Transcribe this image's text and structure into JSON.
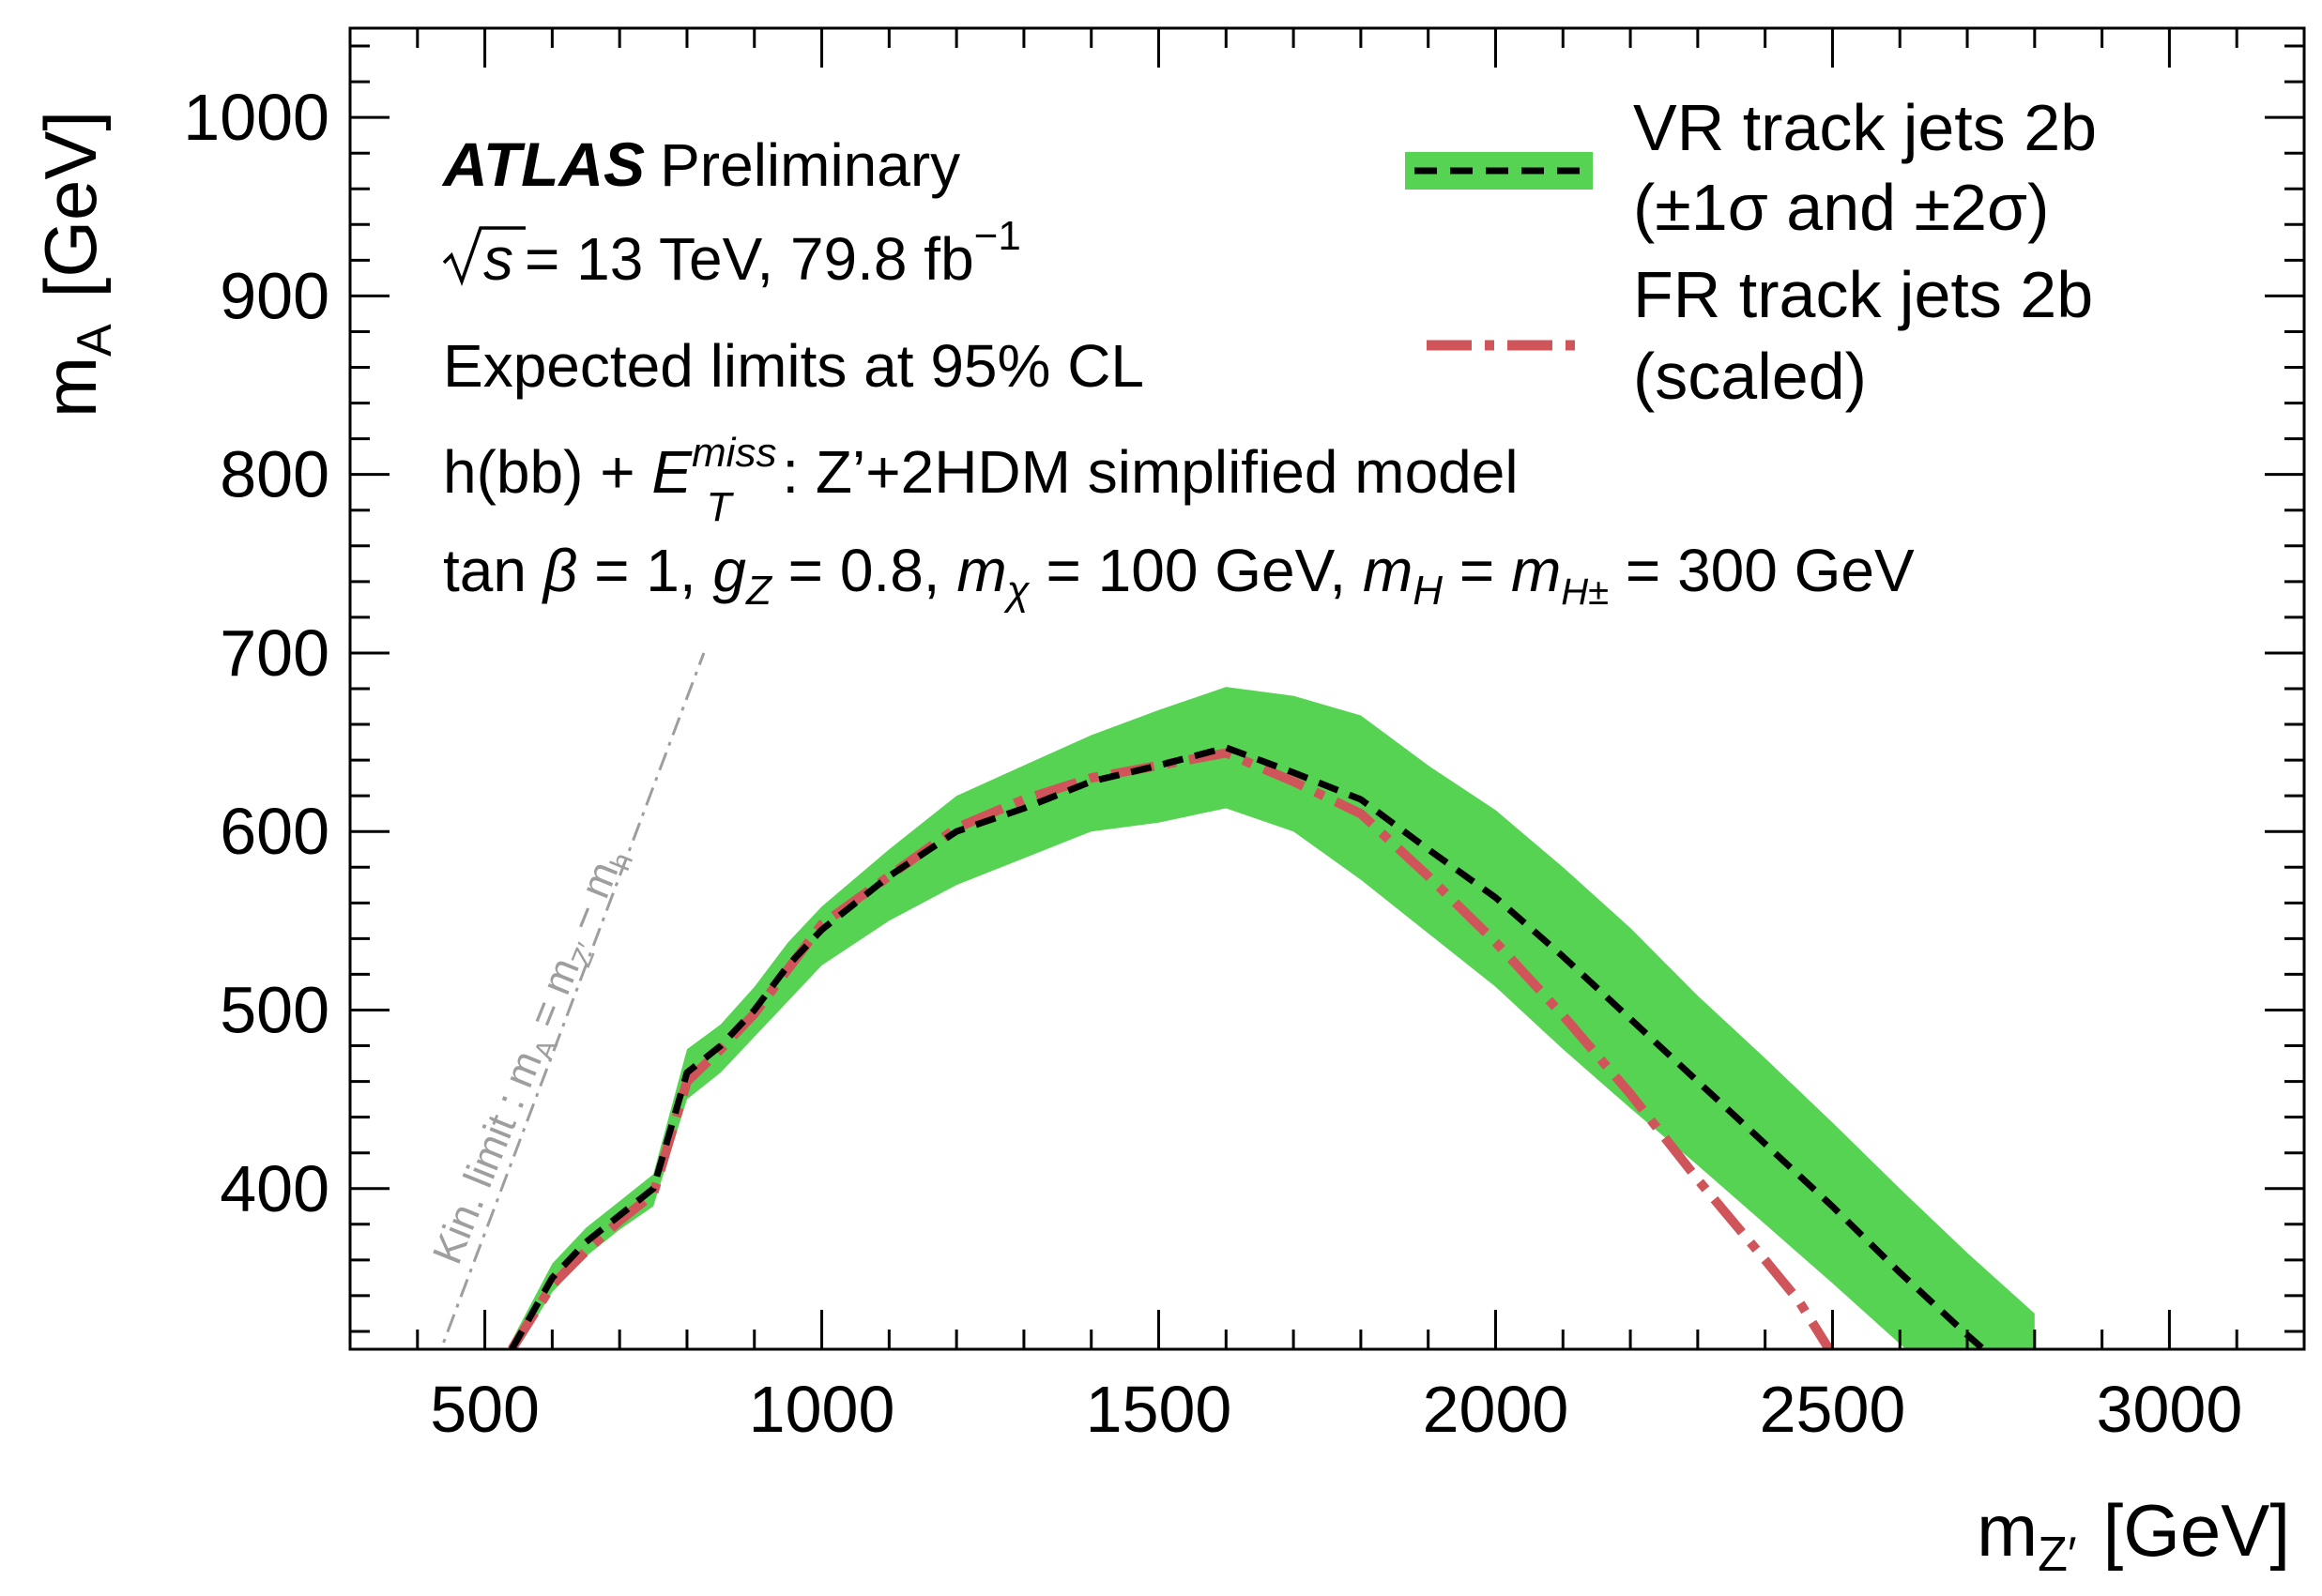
{
  "chart_data": {
    "type": "line",
    "xlabel": "m",
    "xlabel_sub": "Z′",
    "xlabel_unit": "[GeV]",
    "ylabel": "m",
    "ylabel_sub": "A",
    "ylabel_unit": "[GeV]",
    "xlim": [
      300,
      3200
    ],
    "ylim": [
      310,
      1050
    ],
    "xticks": [
      500,
      1000,
      1500,
      2000,
      2500,
      3000
    ],
    "yticks": [
      400,
      500,
      600,
      700,
      800,
      900,
      1000
    ],
    "xtick_labels": [
      "500",
      "1000",
      "1500",
      "2000",
      "2500",
      "3000"
    ],
    "ytick_labels": [
      "400",
      "500",
      "600",
      "700",
      "800",
      "900",
      "1000"
    ],
    "annotations": {
      "atlas": "ATLAS",
      "preliminary": "Preliminary",
      "sqrt_s": "s",
      "energy_lumi": "= 13 TeV, 79.8 fb",
      "lumi_exp": "−1",
      "expected": "Expected limits at 95% CL",
      "model_prefix": "h(bb) + ",
      "model_E": "E",
      "model_E_sup": "miss",
      "model_E_sub": "T",
      "model_suffix": ": Z’+2HDM simplified model",
      "params_tan": "tan ",
      "params_beta": "β",
      "params_1": " = 1, ",
      "params_g": "g",
      "params_g_sub": "Z",
      "params_2": " = 0.8, ",
      "params_mchi": "m",
      "params_mchi_sub": "χ",
      "params_3": " = 100 GeV, ",
      "params_mH": "m",
      "params_mH_sub": "H",
      "params_4": " = ",
      "params_mHpm": "m",
      "params_mHpm_sub": "H±",
      "params_5": " = 300 GeV"
    },
    "kin_limit": {
      "label": "Kin. limit : m",
      "label_sub_A": "A",
      "label_mid": " = m",
      "label_sub_Z": "Z′",
      "label_end": " − m",
      "label_sub_h": "h",
      "x": [
        425,
        825
      ],
      "y": [
        300,
        700
      ],
      "color": "#9e9e9e"
    },
    "legend": [
      {
        "name": "VR track jets 2b",
        "note": "(±1σ and ±2σ)",
        "style": "dashed black with green band"
      },
      {
        "name": "FR track jets 2b",
        "note": "(scaled)",
        "style": "dash-dot red"
      }
    ],
    "series": [
      {
        "name": "VR track jets 2b",
        "color": "#000000",
        "band_color": "#57d354",
        "x": [
          540,
          600,
          650,
          700,
          750,
          800,
          850,
          900,
          950,
          1000,
          1100,
          1200,
          1300,
          1400,
          1500,
          1600,
          1700,
          1800,
          1900,
          2000,
          2100,
          2200,
          2300,
          2400,
          2500,
          2600,
          2700,
          2800
        ],
        "y": [
          310,
          350,
          370,
          385,
          400,
          465,
          480,
          500,
          525,
          545,
          575,
          600,
          613,
          628,
          637,
          647,
          633,
          618,
          590,
          563,
          530,
          495,
          460,
          425,
          390,
          353,
          318,
          285
        ],
        "band_upper": [
          315,
          358,
          378,
          393,
          408,
          478,
          492,
          513,
          538,
          558,
          590,
          620,
          637,
          654,
          668,
          681,
          676,
          665,
          637,
          612,
          580,
          546,
          508,
          473,
          437,
          400,
          364,
          330
        ],
        "band_lower": [
          305,
          342,
          362,
          377,
          390,
          450,
          465,
          485,
          505,
          525,
          550,
          570,
          585,
          600,
          605,
          613,
          600,
          573,
          543,
          513,
          478,
          445,
          413,
          380,
          347,
          313,
          280,
          245
        ]
      },
      {
        "name": "FR track jets 2b",
        "color": "#d0555a",
        "x": [
          540,
          600,
          650,
          700,
          750,
          800,
          850,
          900,
          950,
          1000,
          1100,
          1200,
          1300,
          1400,
          1500,
          1600,
          1700,
          1800,
          1900,
          2000,
          2100,
          2200,
          2300,
          2400,
          2450,
          2500
        ],
        "y": [
          310,
          346,
          365,
          382,
          397,
          460,
          478,
          498,
          523,
          548,
          575,
          602,
          618,
          630,
          637,
          644,
          628,
          610,
          575,
          538,
          497,
          453,
          405,
          360,
          337,
          307
        ]
      }
    ]
  }
}
